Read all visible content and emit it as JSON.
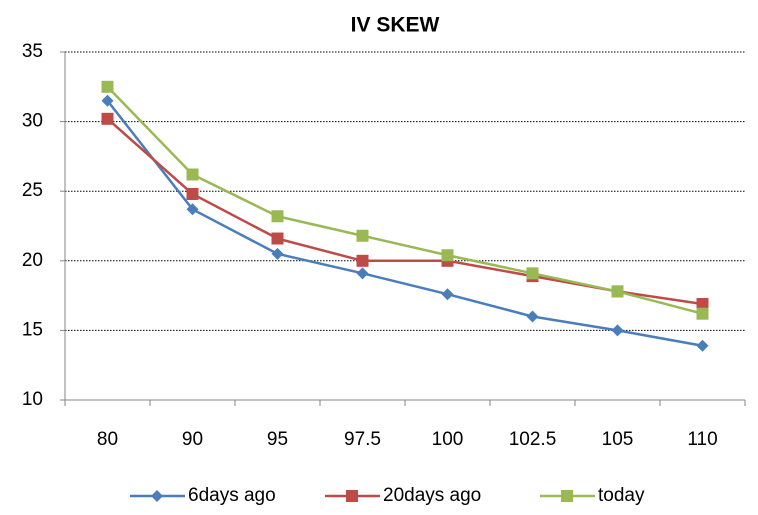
{
  "chart_data": {
    "type": "line",
    "title": "IV SKEW",
    "categories": [
      "80",
      "90",
      "95",
      "97.5",
      "100",
      "102.5",
      "105",
      "110"
    ],
    "series": [
      {
        "name": "6days ago",
        "color": "#4a7ebb",
        "marker": "diamond",
        "values": [
          31.5,
          23.7,
          20.5,
          19.1,
          17.6,
          16.0,
          15.0,
          13.9
        ]
      },
      {
        "name": "20days ago",
        "color": "#be4b48",
        "marker": "square",
        "values": [
          30.2,
          24.8,
          21.6,
          20.0,
          20.0,
          18.9,
          17.8,
          16.9
        ]
      },
      {
        "name": "today",
        "color": "#98b954",
        "marker": "square",
        "values": [
          32.5,
          26.2,
          23.2,
          21.8,
          20.4,
          19.1,
          17.8,
          16.2
        ]
      }
    ],
    "ylim": [
      10,
      35
    ],
    "yticks": [
      10,
      15,
      20,
      25,
      30,
      35
    ],
    "grid": true,
    "legend": "bottom"
  }
}
